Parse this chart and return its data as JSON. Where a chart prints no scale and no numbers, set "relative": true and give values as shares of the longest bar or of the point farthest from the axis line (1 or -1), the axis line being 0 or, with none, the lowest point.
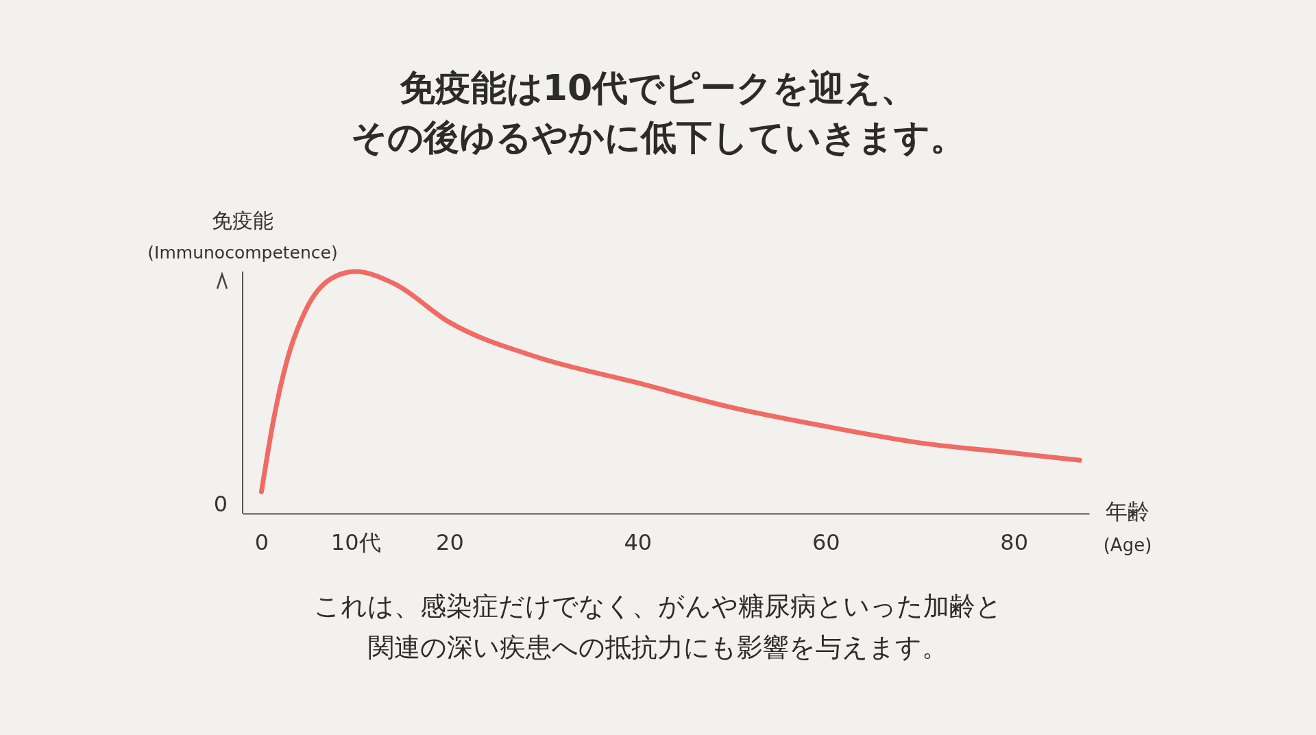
{
  "chart_data": {
    "type": "line",
    "title": "免疫能は10代でピークを迎え、その後ゆるやかに低下していきます。",
    "ylabel": "免疫能$_{(Immunocompetence)}$",
    "xlabel": "年齢$_{(Age)}$",
    "relative": true,
    "annotations": [
      "0",
      "これは、感染症だけでなく、がんや糖尿病といった加齢と関連の深い疾患への抵抗力にも影響を与えます。"
    ],
    "xlim": [
      -2,
      88
    ],
    "xticks": [
      0,
      {
        "value": 10,
        "label": "10代"
      },
      20,
      40,
      60,
      80
    ],
    "x": [
      0,
      1.3,
      2.7,
      4.7,
      7.4,
      10,
      14.1,
      20,
      29,
      40,
      49.8,
      60,
      70.4,
      80,
      87
    ],
    "series": [
      {
        "color": "#ef6b63",
        "values": [
          0.09,
          0.39,
          0.63,
          0.84,
          0.97,
          1.0,
          0.95,
          0.79,
          0.65,
          0.54,
          0.44,
          0.36,
          0.29,
          0.25,
          0.22
        ]
      }
    ],
    "marker": "none",
    "line_style": "solid"
  }
}
